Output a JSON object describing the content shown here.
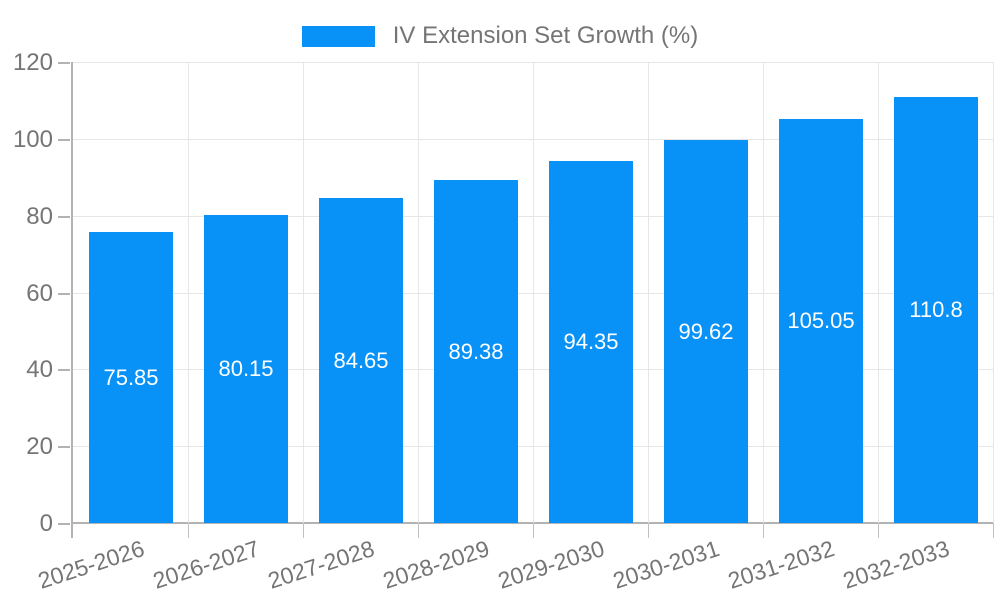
{
  "chart_data": {
    "type": "bar",
    "title": "IV Extension Set Growth (%)",
    "legend_position": "top",
    "categories": [
      "2025-2026",
      "2026-2027",
      "2027-2028",
      "2028-2029",
      "2029-2030",
      "2030-2031",
      "2031-2032",
      "2032-2033"
    ],
    "series": [
      {
        "name": "IV Extension Set Growth (%)",
        "values": [
          75.85,
          80.15,
          84.65,
          89.38,
          94.35,
          99.62,
          105.05,
          110.8
        ]
      }
    ],
    "value_labels": [
      "75.85",
      "80.15",
      "84.65",
      "89.38",
      "94.35",
      "99.62",
      "105.05",
      "110.8"
    ],
    "ylim": [
      0,
      120
    ],
    "yticks": [
      "0",
      "20",
      "40",
      "60",
      "80",
      "100",
      "120"
    ],
    "grid": true,
    "colors": {
      "bar": "#0892f8",
      "grid": "#e6e6e6",
      "axis": "#b3b3b3",
      "tick_text": "#757575",
      "value_text": "#ffffff",
      "background": "#ffffff"
    }
  }
}
